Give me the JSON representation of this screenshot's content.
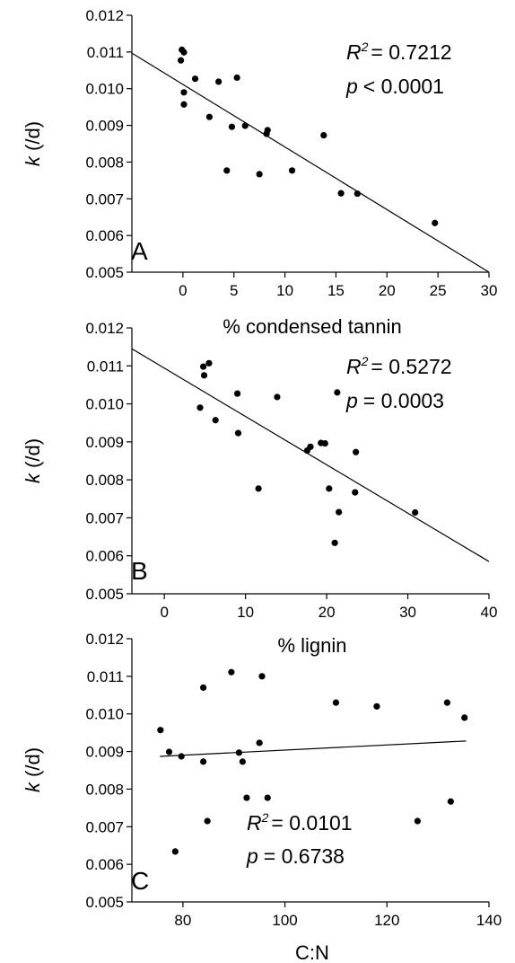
{
  "figure": {
    "y_ticks": [
      "0.005",
      "0.006",
      "0.007",
      "0.008",
      "0.009",
      "0.010",
      "0.011",
      "0.012"
    ],
    "ylabel_italic": "k",
    "ylabel_rest": " (/d)"
  },
  "chart_data": [
    {
      "type": "scatter",
      "panel": "A",
      "xlabel": "% condensed tannin",
      "ylabel": "k (/d)",
      "xlim": [
        -5,
        30
      ],
      "ylim": [
        0.005,
        0.012
      ],
      "x_ticks": [
        "0",
        "5",
        "10",
        "15",
        "20",
        "25",
        "30"
      ],
      "r2_label": "R",
      "r2_value": "= 0.7212",
      "p_label": "p",
      "p_value": "< 0.0001",
      "fit": [
        [
          -5,
          0.01097
        ],
        [
          30,
          0.005
        ]
      ],
      "points": [
        [
          -0.1,
          0.01106
        ],
        [
          0.1,
          0.01099
        ],
        [
          -0.2,
          0.01077
        ],
        [
          0.1,
          0.0099
        ],
        [
          0.1,
          0.00957
        ],
        [
          1.2,
          0.01027
        ],
        [
          2.6,
          0.00923
        ],
        [
          3.5,
          0.01019
        ],
        [
          4.3,
          0.00777
        ],
        [
          4.8,
          0.00896
        ],
        [
          5.3,
          0.0103
        ],
        [
          6.1,
          0.00899
        ],
        [
          7.5,
          0.00767
        ],
        [
          8.2,
          0.00877
        ],
        [
          8.3,
          0.00887
        ],
        [
          10.7,
          0.00777
        ],
        [
          13.8,
          0.00873
        ],
        [
          15.5,
          0.00715
        ],
        [
          17.1,
          0.00714
        ],
        [
          24.7,
          0.00634
        ]
      ]
    },
    {
      "type": "scatter",
      "panel": "B",
      "xlabel": "% lignin",
      "ylabel": "k (/d)",
      "xlim": [
        -4,
        40
      ],
      "ylim": [
        0.005,
        0.012
      ],
      "x_ticks": [
        "0",
        "10",
        "20",
        "30",
        "40"
      ],
      "r2_label": "R",
      "r2_value": "= 0.5272",
      "p_label": "p",
      "p_value": "= 0.0003",
      "fit": [
        [
          -4,
          0.01145
        ],
        [
          40,
          0.00585
        ]
      ],
      "points": [
        [
          4.8,
          0.01098
        ],
        [
          5.5,
          0.01107
        ],
        [
          4.9,
          0.01075
        ],
        [
          4.4,
          0.0099
        ],
        [
          6.3,
          0.00957
        ],
        [
          9.0,
          0.01027
        ],
        [
          9.1,
          0.00923
        ],
        [
          11.6,
          0.00777
        ],
        [
          13.9,
          0.01018
        ],
        [
          17.6,
          0.00877
        ],
        [
          18.0,
          0.00887
        ],
        [
          19.3,
          0.00897
        ],
        [
          19.8,
          0.00896
        ],
        [
          20.3,
          0.00777
        ],
        [
          21.3,
          0.0103
        ],
        [
          21.5,
          0.00715
        ],
        [
          21.0,
          0.00634
        ],
        [
          23.5,
          0.00767
        ],
        [
          23.6,
          0.00873
        ],
        [
          30.9,
          0.00714
        ]
      ]
    },
    {
      "type": "scatter",
      "panel": "C",
      "xlabel": "C:N",
      "ylabel": "k (/d)",
      "xlim": [
        70,
        140
      ],
      "ylim": [
        0.005,
        0.012
      ],
      "x_ticks": [
        "80",
        "100",
        "120",
        "140"
      ],
      "r2_label": "R",
      "r2_value": "= 0.0101",
      "p_label": "p",
      "p_value": "= 0.6738",
      "fit": [
        [
          75.5,
          0.00887
        ],
        [
          135.5,
          0.00928
        ]
      ],
      "points": [
        [
          75.6,
          0.00957
        ],
        [
          77.3,
          0.00899
        ],
        [
          79.7,
          0.00887
        ],
        [
          78.5,
          0.00634
        ],
        [
          84.0,
          0.0107
        ],
        [
          84.0,
          0.00873
        ],
        [
          84.8,
          0.00715
        ],
        [
          89.5,
          0.01111
        ],
        [
          91.0,
          0.00897
        ],
        [
          91.7,
          0.00873
        ],
        [
          92.5,
          0.00777
        ],
        [
          95.0,
          0.00923
        ],
        [
          95.5,
          0.011
        ],
        [
          96.6,
          0.00777
        ],
        [
          110.0,
          0.0103
        ],
        [
          118.0,
          0.0102
        ],
        [
          126.0,
          0.00715
        ],
        [
          131.8,
          0.0103
        ],
        [
          132.5,
          0.00767
        ],
        [
          135.2,
          0.0099
        ]
      ]
    }
  ]
}
